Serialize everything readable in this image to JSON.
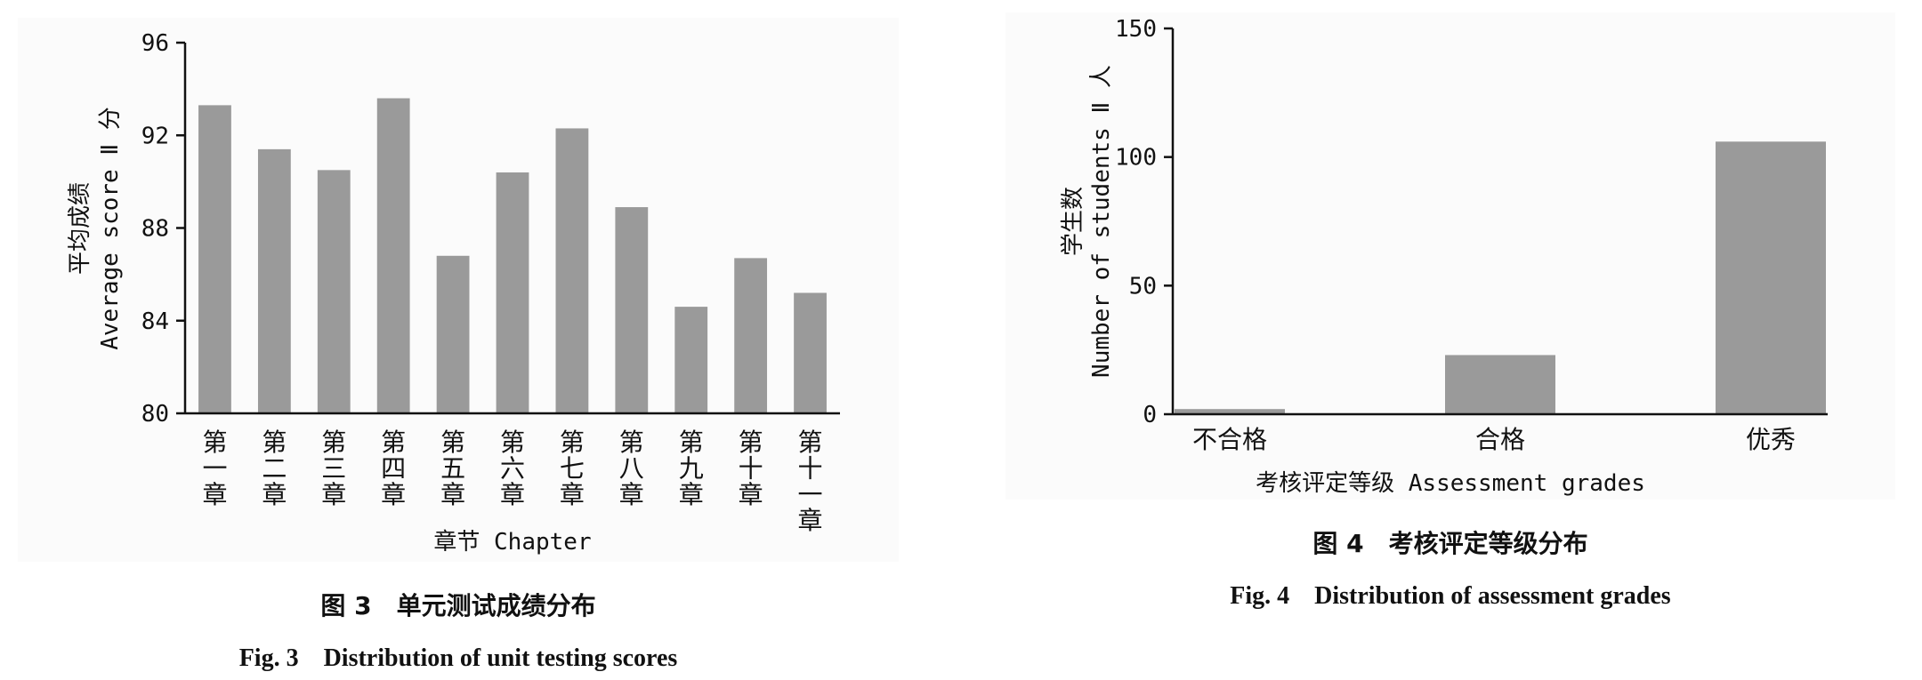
{
  "chart_data": [
    {
      "type": "bar",
      "xlabel": "章节 Chapter",
      "ylabel_cn": "平均成绩",
      "ylabel_en": "Average score Ⅱ 分",
      "ylim": [
        80,
        96
      ],
      "yticks": [
        80,
        84,
        88,
        92,
        96
      ],
      "categories": [
        "第一章",
        "第二章",
        "第三章",
        "第四章",
        "第五章",
        "第六章",
        "第七章",
        "第八章",
        "第九章",
        "第十章",
        "第十一章"
      ],
      "values": [
        93.3,
        91.4,
        90.5,
        93.6,
        86.8,
        90.4,
        92.3,
        88.9,
        84.6,
        86.7,
        85.2
      ],
      "caption_cn": "图 3　单元测试成绩分布",
      "caption_en": "Fig. 3　Distribution of unit testing scores"
    },
    {
      "type": "bar",
      "xlabel": "考核评定等级 Assessment grades",
      "ylabel_cn": "学生数",
      "ylabel_en": "Number of students Ⅱ 人",
      "ylim": [
        0,
        150
      ],
      "yticks": [
        0,
        50,
        100,
        150
      ],
      "categories": [
        "不合格",
        "合格",
        "优秀"
      ],
      "values": [
        2,
        23,
        106
      ],
      "caption_cn": "图 4　考核评定等级分布",
      "caption_en": "Fig. 4　Distribution of assessment grades"
    }
  ]
}
